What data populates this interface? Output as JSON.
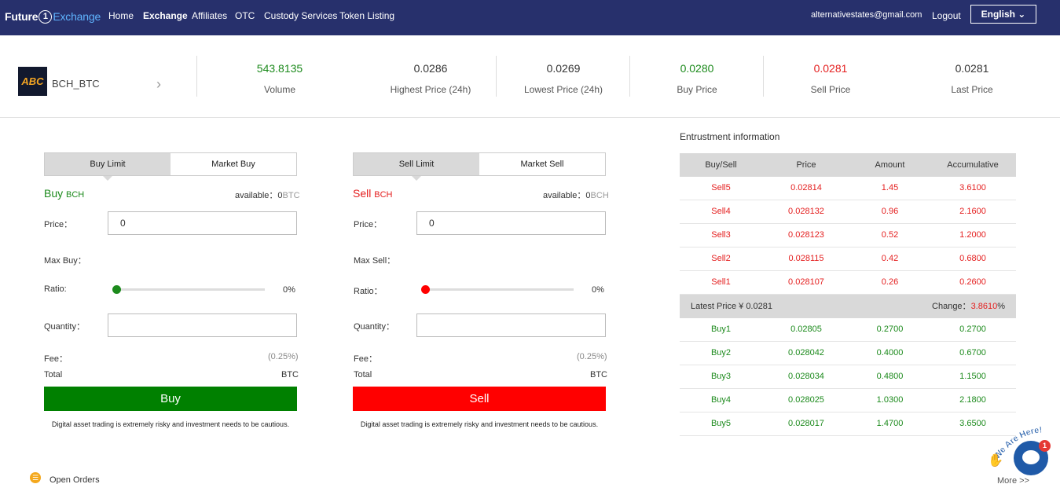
{
  "nav": {
    "logo_future": "Future",
    "logo_one": "1",
    "logo_exchange": "Exchange",
    "items": [
      "Home",
      "Exchange",
      "Affiliates",
      "OTC",
      "Custody Services",
      "Token Listing"
    ],
    "email": "alternativestates@gmail.com",
    "logout": "Logout",
    "language": "English ⌄"
  },
  "ticker": {
    "pair_logo": "ABC",
    "pair": "BCH_BTC",
    "chevron": "›",
    "stats": [
      {
        "value": "543.8135",
        "label": "Volume",
        "color": "#1c8a1c"
      },
      {
        "value": "0.0286",
        "label": "Highest Price (24h)",
        "color": "#333333"
      },
      {
        "value": "0.0269",
        "label": "Lowest Price (24h)",
        "color": "#333333"
      },
      {
        "value": "0.0280",
        "label": "Buy Price",
        "color": "#1c8a1c"
      },
      {
        "value": "0.0281",
        "label": "Sell Price",
        "color": "#e41e1e"
      },
      {
        "value": "0.0281",
        "label": "Last Price",
        "color": "#333333"
      }
    ]
  },
  "buy_form": {
    "tab_limit": "Buy Limit",
    "tab_market": "Market Buy",
    "title": "Buy",
    "coin": "BCH",
    "available_label": "available：",
    "available_value": "0",
    "available_unit": "BTC",
    "price_label": "Price：",
    "price_value": "0",
    "max_label": "Max Buy：",
    "ratio_label": "Ratio:",
    "ratio_value": "0%",
    "quantity_label": "Quantity：",
    "fee_label": "Fee：",
    "fee_value": "(0.25%)",
    "total_label": "Total",
    "total_unit": "BTC",
    "button": "Buy",
    "risk": "Digital asset trading is extremely risky and investment needs to be cautious.",
    "color": "#008000"
  },
  "sell_form": {
    "tab_limit": "Sell Limit",
    "tab_market": "Market Sell",
    "title": "Sell",
    "coin": "BCH",
    "available_label": "available：",
    "available_value": "0",
    "available_unit": "BCH",
    "price_label": "Price：",
    "price_value": "0",
    "max_label": "Max Sell：",
    "ratio_label": "Ratio：",
    "ratio_value": "0%",
    "quantity_label": "Quantity：",
    "fee_label": "Fee：",
    "fee_value": "(0.25%)",
    "total_label": "Total",
    "total_unit": "BTC",
    "button": "Sell",
    "risk": "Digital asset trading is extremely risky and investment needs to be cautious.",
    "color": "#ff0000"
  },
  "orderbook": {
    "title": "Entrustment information",
    "headers": [
      "Buy/Sell",
      "Price",
      "Amount",
      "Accumulative"
    ],
    "sells": [
      [
        "Sell5",
        "0.02814",
        "1.45",
        "3.6100"
      ],
      [
        "Sell4",
        "0.028132",
        "0.96",
        "2.1600"
      ],
      [
        "Sell3",
        "0.028123",
        "0.52",
        "1.2000"
      ],
      [
        "Sell2",
        "0.028115",
        "0.42",
        "0.6800"
      ],
      [
        "Sell1",
        "0.028107",
        "0.26",
        "0.2600"
      ]
    ],
    "latest_price": "Latest Price ¥ 0.0281",
    "change_label": "Change：",
    "change_value": "3.8610",
    "change_unit": "%",
    "buys": [
      [
        "Buy1",
        "0.02805",
        "0.2700",
        "0.2700"
      ],
      [
        "Buy2",
        "0.028042",
        "0.4000",
        "0.6700"
      ],
      [
        "Buy3",
        "0.028034",
        "0.4800",
        "1.1500"
      ],
      [
        "Buy4",
        "0.028025",
        "1.0300",
        "2.1800"
      ],
      [
        "Buy5",
        "0.028017",
        "1.4700",
        "3.6500"
      ]
    ]
  },
  "bottom": {
    "open_orders": "Open Orders",
    "more": "More >>"
  },
  "chat": {
    "badge": "We Are Here!",
    "count": "1"
  }
}
